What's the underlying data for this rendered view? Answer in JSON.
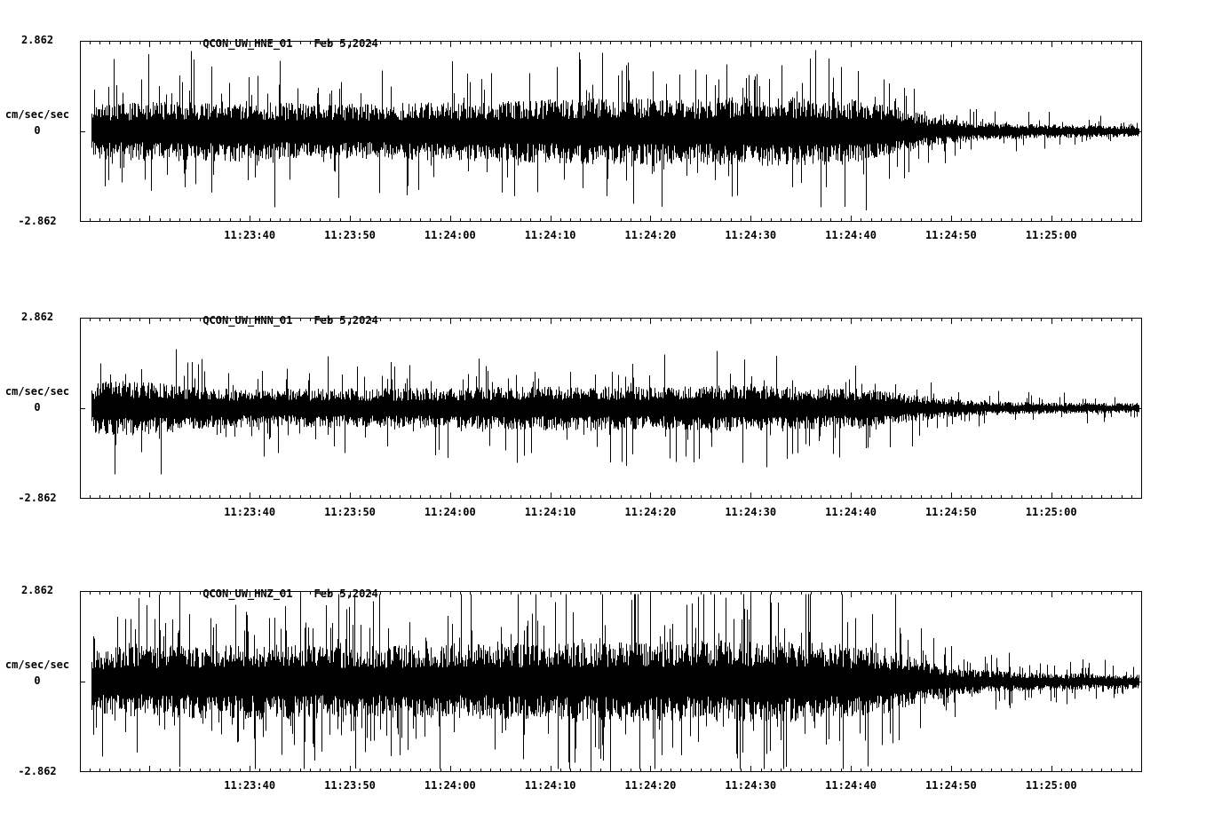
{
  "page": {
    "background": "#ffffff",
    "trace_color": "#000000"
  },
  "chart_data": [
    {
      "type": "line",
      "subtype": "seismogram",
      "station": "QCON_UW_HNE_01",
      "date": "Feb 5,2024",
      "ylabel": "cm/sec/sec",
      "y_max_label": "2.862",
      "y_zero_label": "0",
      "y_min_label": "-2.862",
      "ylim": [
        -2.862,
        2.862
      ],
      "grid": "off",
      "legend": "none",
      "xticks": [
        "11:23:40",
        "11:23:50",
        "11:24:00",
        "11:24:10",
        "11:24:20",
        "11:24:30",
        "11:24:40",
        "11:24:50",
        "11:25:00"
      ],
      "x_tick_interval_seconds": 10,
      "envelope": {
        "t_frac": [
          0,
          0.02,
          0.08,
          0.15,
          0.22,
          0.3,
          0.38,
          0.45,
          0.52,
          0.58,
          0.64,
          0.7,
          0.74,
          0.77,
          0.8,
          0.85,
          0.92,
          1.0
        ],
        "amp": [
          0.9,
          1.15,
          1.2,
          1.25,
          1.1,
          1.15,
          1.2,
          1.3,
          1.35,
          1.3,
          1.45,
          1.35,
          1.25,
          1.0,
          0.6,
          0.35,
          0.28,
          0.22
        ]
      },
      "peak_spikes": [
        {
          "t_frac": 0.47,
          "amp": 2.55
        },
        {
          "t_frac": 0.698,
          "amp": -2.45
        }
      ]
    },
    {
      "type": "line",
      "subtype": "seismogram",
      "station": "QCON_UW_HNN_01",
      "date": "Feb 5,2024",
      "ylabel": "cm/sec/sec",
      "y_max_label": "2.862",
      "y_zero_label": "0",
      "y_min_label": "-2.862",
      "ylim": [
        -2.862,
        2.862
      ],
      "grid": "off",
      "legend": "none",
      "xticks": [
        "11:23:40",
        "11:23:50",
        "11:24:00",
        "11:24:10",
        "11:24:20",
        "11:24:30",
        "11:24:40",
        "11:24:50",
        "11:25:00"
      ],
      "x_tick_interval_seconds": 10,
      "envelope": {
        "t_frac": [
          0,
          0.02,
          0.05,
          0.1,
          0.15,
          0.25,
          0.35,
          0.45,
          0.55,
          0.62,
          0.68,
          0.74,
          0.78,
          0.82,
          0.88,
          1.0
        ],
        "amp": [
          0.9,
          1.3,
          1.35,
          1.1,
          0.95,
          0.95,
          1.0,
          1.1,
          1.05,
          1.15,
          1.05,
          0.95,
          0.7,
          0.45,
          0.3,
          0.24
        ]
      },
      "peak_spikes": [
        {
          "t_frac": 0.09,
          "amp": 1.9
        },
        {
          "t_frac": 0.6,
          "amp": 1.85
        }
      ]
    },
    {
      "type": "line",
      "subtype": "seismogram",
      "station": "QCON_UW_HNZ_01",
      "date": "Feb 5,2024",
      "ylabel": "cm/sec/sec",
      "y_max_label": "2.862",
      "y_zero_label": "0",
      "y_min_label": "-2.862",
      "ylim": [
        -2.862,
        2.862
      ],
      "grid": "off",
      "legend": "none",
      "xticks": [
        "11:23:40",
        "11:23:50",
        "11:24:00",
        "11:24:10",
        "11:24:20",
        "11:24:30",
        "11:24:40",
        "11:24:50",
        "11:25:00"
      ],
      "x_tick_interval_seconds": 10,
      "envelope": {
        "t_frac": [
          0,
          0.03,
          0.1,
          0.18,
          0.26,
          0.34,
          0.42,
          0.5,
          0.58,
          0.64,
          0.7,
          0.75,
          0.79,
          0.83,
          0.9,
          1.0
        ],
        "amp": [
          1.1,
          1.35,
          1.45,
          1.5,
          1.4,
          1.45,
          1.5,
          1.55,
          1.6,
          1.65,
          1.55,
          1.35,
          0.9,
          0.5,
          0.35,
          0.28
        ]
      },
      "peak_spikes": [
        {
          "t_frac": 0.632,
          "amp": 2.8
        },
        {
          "t_frac": 0.481,
          "amp": -2.85
        },
        {
          "t_frac": 0.46,
          "amp": -2.6
        }
      ]
    }
  ]
}
